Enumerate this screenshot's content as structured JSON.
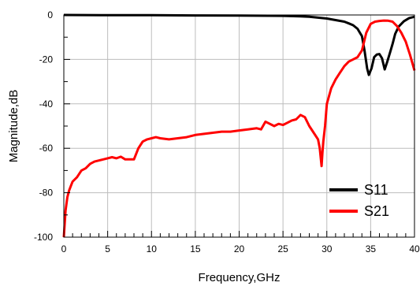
{
  "chart_data": {
    "type": "line",
    "xlabel": "Frequency,GHz",
    "ylabel": "Magnitude,dB",
    "xlim": [
      0,
      40
    ],
    "ylim": [
      -100,
      0
    ],
    "x_ticks": [
      0,
      5,
      10,
      15,
      20,
      25,
      30,
      35,
      40
    ],
    "y_ticks": [
      -100,
      -80,
      -60,
      -40,
      -20,
      0
    ],
    "x_tick_labels": [
      "0",
      "5",
      "10",
      "15",
      "20",
      "25",
      "30",
      "35",
      "40"
    ],
    "y_tick_labels": [
      "-100",
      "-80",
      "-60",
      "-40",
      "-20",
      "0"
    ],
    "grid": true,
    "legend_position": "bottom-right",
    "series": [
      {
        "name": "S11",
        "color": "#000000",
        "x": [
          0,
          5,
          10,
          15,
          20,
          25,
          27,
          28,
          29,
          30,
          31,
          32,
          32.5,
          33,
          33.5,
          34,
          34.3,
          34.6,
          34.8,
          35.1,
          35.4,
          35.7,
          36.0,
          36.3,
          36.6,
          36.9,
          37.2,
          37.5,
          37.8,
          38.2,
          38.8,
          39.4,
          40
        ],
        "values": [
          0,
          -0.1,
          -0.1,
          -0.2,
          -0.3,
          -0.4,
          -0.6,
          -0.8,
          -1.2,
          -1.6,
          -2.3,
          -3.0,
          -3.8,
          -4.6,
          -6.2,
          -9.5,
          -16,
          -24,
          -27,
          -24,
          -19,
          -17.8,
          -17.6,
          -19.5,
          -24.5,
          -21,
          -17,
          -13,
          -8.5,
          -5.2,
          -2.8,
          -1.4,
          -0.8
        ]
      },
      {
        "name": "S21",
        "color": "#ff0000",
        "x": [
          0,
          0.2,
          0.4,
          0.6,
          0.8,
          1.0,
          1.5,
          2,
          2.5,
          3,
          3.5,
          4,
          4.5,
          5,
          5.5,
          6,
          6.5,
          7,
          7.5,
          8,
          8.5,
          9,
          9.5,
          10,
          10.5,
          11,
          12,
          13,
          14,
          15,
          16,
          17,
          18,
          19,
          20,
          21,
          22,
          22.5,
          23,
          23.5,
          24,
          24.5,
          25,
          25.5,
          26,
          26.5,
          27,
          27.5,
          28,
          28.5,
          29,
          29.2,
          29.4,
          29.5,
          29.6,
          29.8,
          30,
          30.5,
          31,
          31.5,
          32,
          32.5,
          33,
          33.5,
          34,
          34.5,
          35,
          35.5,
          36,
          36.5,
          37,
          37.5,
          38,
          38.5,
          39,
          39.5,
          40
        ],
        "values": [
          -100,
          -88,
          -82,
          -79,
          -77,
          -75,
          -73,
          -70,
          -69,
          -67,
          -66,
          -65.5,
          -65,
          -64.5,
          -64,
          -64.5,
          -63.8,
          -65,
          -65,
          -65,
          -60,
          -57,
          -56,
          -55.5,
          -55,
          -55.5,
          -56,
          -55.5,
          -55,
          -54,
          -53.5,
          -53,
          -52.5,
          -52.5,
          -52,
          -51.5,
          -51,
          -51.5,
          -48,
          -49,
          -50,
          -49,
          -49.5,
          -48.5,
          -47.5,
          -47,
          -45,
          -46,
          -50,
          -53,
          -56,
          -60,
          -68,
          -62,
          -57,
          -50,
          -40,
          -33,
          -29,
          -26,
          -23,
          -21,
          -20,
          -19,
          -16,
          -8,
          -4,
          -3,
          -2.7,
          -2.5,
          -2.6,
          -3,
          -5,
          -8,
          -12,
          -18,
          -25
        ]
      }
    ]
  }
}
